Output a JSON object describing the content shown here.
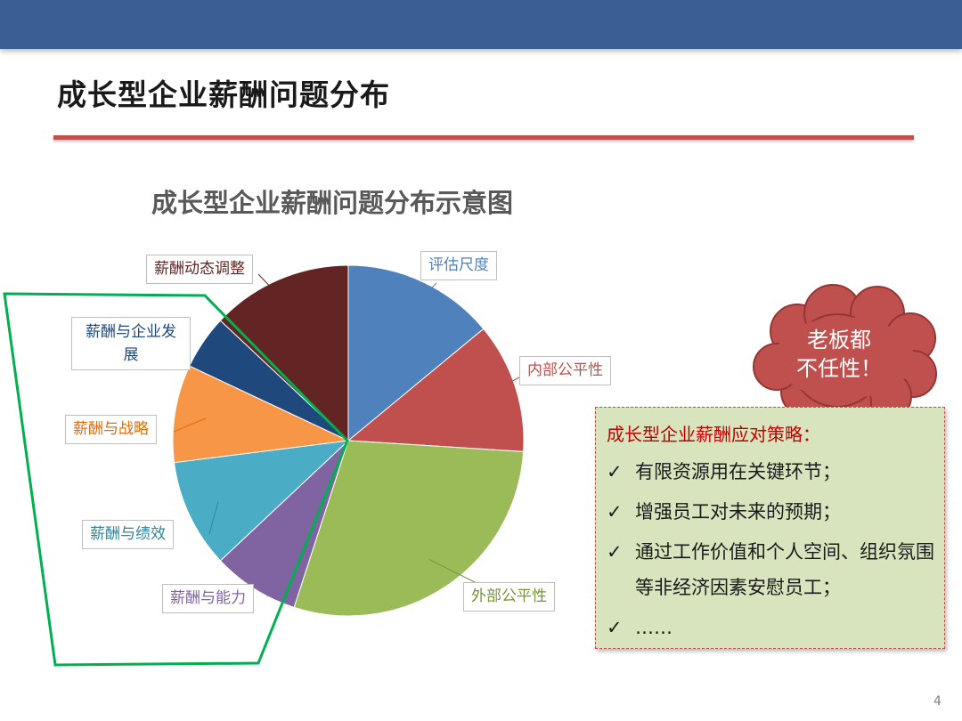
{
  "slide": {
    "title": "成长型企业薪酬问题分布",
    "page_number": "4"
  },
  "chart_data": {
    "type": "pie",
    "title": "成长型企业薪酬问题分布示意图",
    "start_angle_deg": 0,
    "direction": "clockwise",
    "slices": [
      {
        "label": "评估尺度",
        "value": 14,
        "color": "#4f81bd",
        "label_color": "#4f81bd"
      },
      {
        "label": "内部公平性",
        "value": 12,
        "color": "#c0504d",
        "label_color": "#c0504d"
      },
      {
        "label": "外部公平性",
        "value": 29,
        "color": "#9bbb59",
        "label_color": "#77933c"
      },
      {
        "label": "薪酬与能力",
        "value": 8,
        "color": "#8064a2",
        "label_color": "#8064a2"
      },
      {
        "label": "薪酬与绩效",
        "value": 10,
        "color": "#4bacc6",
        "label_color": "#31859c"
      },
      {
        "label": "薪酬与战略",
        "value": 9,
        "color": "#f79646",
        "label_color": "#e46c0a"
      },
      {
        "label": "薪酬与企业发展",
        "value": 5,
        "color": "#1f497d",
        "label_color": "#1f497d"
      },
      {
        "label": "薪酬动态调整",
        "value": 13,
        "color": "#632523",
        "label_color": "#632523"
      }
    ],
    "highlight_outline_color": "#00b050"
  },
  "cloud": {
    "line1": "老板都",
    "line2": "不任性！",
    "color": "#c0504d"
  },
  "strategy": {
    "title": "成长型企业薪酬应对策略：",
    "check_mark": "✓",
    "items": [
      "有限资源用在关键环节；",
      "增强员工对未来的预期；",
      "通过工作价值和个人空间、组织氛围等非经济因素安慰员工；",
      "……"
    ]
  }
}
